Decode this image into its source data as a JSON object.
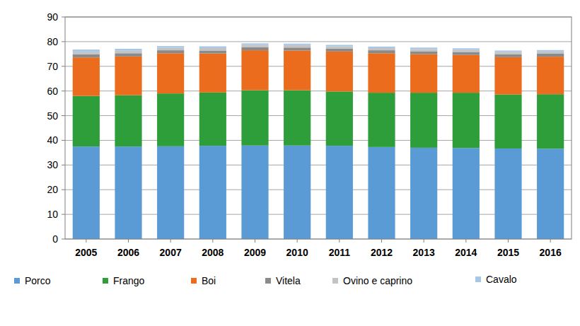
{
  "chart_data": {
    "type": "bar",
    "stacked": true,
    "grid": true,
    "legend": "bottom",
    "categories": [
      "2005",
      "2006",
      "2007",
      "2008",
      "2009",
      "2010",
      "2011",
      "2012",
      "2013",
      "2014",
      "2015",
      "2016"
    ],
    "ylim": [
      0,
      90
    ],
    "yticks": [
      0,
      10,
      20,
      30,
      40,
      50,
      60,
      70,
      80,
      90
    ],
    "series": [
      {
        "name": "Porco",
        "color": "#5b9bd5",
        "values": [
          37.5,
          37.5,
          37.6,
          37.8,
          37.9,
          37.9,
          37.8,
          37.3,
          37.0,
          36.9,
          36.7,
          36.6
        ]
      },
      {
        "name": "Frango",
        "color": "#2e9e3a",
        "values": [
          20.5,
          20.8,
          21.4,
          21.6,
          22.4,
          22.4,
          22.0,
          22.0,
          22.3,
          22.4,
          21.9,
          22.1
        ]
      },
      {
        "name": "Boi",
        "color": "#eb6c1c",
        "values": [
          15.6,
          15.7,
          16.3,
          15.8,
          16.2,
          16.1,
          16.2,
          16.0,
          15.6,
          15.3,
          15.1,
          15.2
        ]
      },
      {
        "name": "Vitela",
        "color": "#8a8a8a",
        "values": [
          1.3,
          1.3,
          1.2,
          1.2,
          1.2,
          1.2,
          1.2,
          1.2,
          1.2,
          1.2,
          1.2,
          1.2
        ]
      },
      {
        "name": "Ovino e caprino",
        "color": "#c3c3c3",
        "values": [
          1.0,
          1.0,
          1.0,
          1.0,
          1.0,
          1.0,
          0.9,
          0.9,
          0.9,
          0.9,
          0.9,
          0.9
        ]
      },
      {
        "name": "Cavalo",
        "color": "#a7c7e7",
        "values": [
          0.9,
          0.8,
          0.7,
          0.7,
          0.6,
          0.6,
          0.6,
          0.6,
          0.6,
          0.6,
          0.6,
          0.6
        ]
      }
    ]
  }
}
